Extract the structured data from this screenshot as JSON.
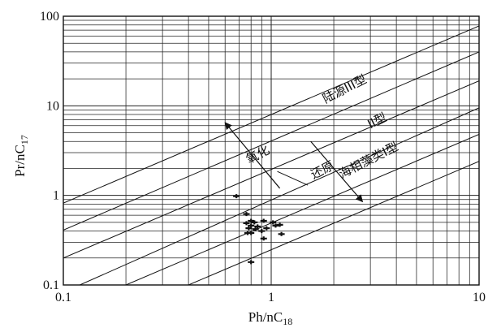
{
  "colors": {
    "ink": "#111111",
    "grid": "#222222",
    "background": "#ffffff"
  },
  "chart_data": {
    "type": "scatter",
    "title": "",
    "xlabel": {
      "main": "Ph/nC",
      "sub": "18"
    },
    "ylabel": {
      "main": "Pr/nC",
      "sub": "17"
    },
    "xscale": "log",
    "yscale": "log",
    "xlim": [
      0.1,
      10
    ],
    "ylim": [
      0.1,
      100
    ],
    "grid": true,
    "x_tick_labels": [
      {
        "value": 0.1,
        "label": "0.1"
      },
      {
        "value": 1,
        "label": "1"
      },
      {
        "value": 10,
        "label": "10"
      }
    ],
    "y_tick_labels": [
      {
        "value": 0.1,
        "label": "0.1"
      },
      {
        "value": 1,
        "label": "1"
      },
      {
        "value": 10,
        "label": "10"
      },
      {
        "value": 100,
        "label": "100"
      }
    ],
    "boundary_lines": [
      {
        "x1": 0.1,
        "y1": 0.82,
        "x2": 10,
        "y2": 78
      },
      {
        "x1": 0.1,
        "y1": 0.41,
        "x2": 10,
        "y2": 40
      },
      {
        "x1": 0.1,
        "y1": 0.2,
        "x2": 10,
        "y2": 19
      },
      {
        "x1": 0.12,
        "y1": 0.1,
        "x2": 10,
        "y2": 9.5
      },
      {
        "x1": 0.2,
        "y1": 0.1,
        "x2": 10,
        "y2": 4.8
      },
      {
        "x1": 0.4,
        "y1": 0.1,
        "x2": 10,
        "y2": 2.4
      }
    ],
    "region_labels": [
      {
        "text": "陆源III型",
        "x": 2.3,
        "y": 14,
        "angle": -27
      },
      {
        "text": "II型",
        "x": 3.3,
        "y": 6.2,
        "angle": -27
      },
      {
        "text": "海相藻类I型",
        "x": 3.0,
        "y": 2.25,
        "angle": -27
      },
      {
        "text": "氧化",
        "x": 0.88,
        "y": 2.6,
        "angle": -27
      },
      {
        "text": "还原",
        "x": 1.8,
        "y": 1.75,
        "angle": -27
      }
    ],
    "arrows": [
      {
        "from": [
          1.1,
          1.2
        ],
        "to": [
          0.6,
          6.5
        ]
      },
      {
        "from": [
          1.55,
          4.0
        ],
        "to": [
          2.75,
          0.85
        ]
      }
    ],
    "connector_lines": [
      {
        "from": [
          1.07,
          1.85
        ],
        "to": [
          1.5,
          1.3
        ]
      }
    ],
    "points": [
      {
        "x": 0.68,
        "y": 0.98
      },
      {
        "x": 0.76,
        "y": 0.62
      },
      {
        "x": 0.8,
        "y": 0.52
      },
      {
        "x": 0.83,
        "y": 0.5
      },
      {
        "x": 0.76,
        "y": 0.49
      },
      {
        "x": 0.8,
        "y": 0.46
      },
      {
        "x": 0.86,
        "y": 0.45
      },
      {
        "x": 0.78,
        "y": 0.43
      },
      {
        "x": 0.84,
        "y": 0.42
      },
      {
        "x": 0.77,
        "y": 0.38
      },
      {
        "x": 0.8,
        "y": 0.38
      },
      {
        "x": 0.92,
        "y": 0.52
      },
      {
        "x": 1.02,
        "y": 0.5
      },
      {
        "x": 1.1,
        "y": 0.47
      },
      {
        "x": 0.95,
        "y": 0.43
      },
      {
        "x": 0.9,
        "y": 0.4
      },
      {
        "x": 1.05,
        "y": 0.46
      },
      {
        "x": 0.92,
        "y": 0.33
      },
      {
        "x": 1.12,
        "y": 0.37
      },
      {
        "x": 0.8,
        "y": 0.18
      }
    ]
  }
}
